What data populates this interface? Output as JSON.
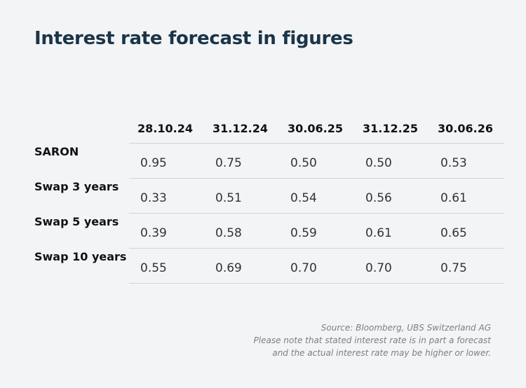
{
  "title": "Interest rate forecast in figures",
  "table": {
    "columns": [
      "28.10.24",
      "31.12.24",
      "30.06.25",
      "31.12.25",
      "30.06.26"
    ],
    "rows": [
      {
        "label": "SARON",
        "values": [
          "0.95",
          "0.75",
          "0.50",
          "0.50",
          "0.53"
        ]
      },
      {
        "label": "Swap 3 years",
        "values": [
          "0.33",
          "0.51",
          "0.54",
          "0.56",
          "0.61"
        ]
      },
      {
        "label": "Swap 5 years",
        "values": [
          "0.39",
          "0.58",
          "0.59",
          "0.61",
          "0.65"
        ]
      },
      {
        "label": "Swap 10 years",
        "values": [
          "0.55",
          "0.69",
          "0.70",
          "0.70",
          "0.75"
        ]
      }
    ]
  },
  "footnote": {
    "line1": "Source: Bloomberg, UBS Switzerland AG",
    "line2": "Please note that stated interest rate is in part a forecast",
    "line3": "and the actual interest rate may be higher or lower."
  }
}
